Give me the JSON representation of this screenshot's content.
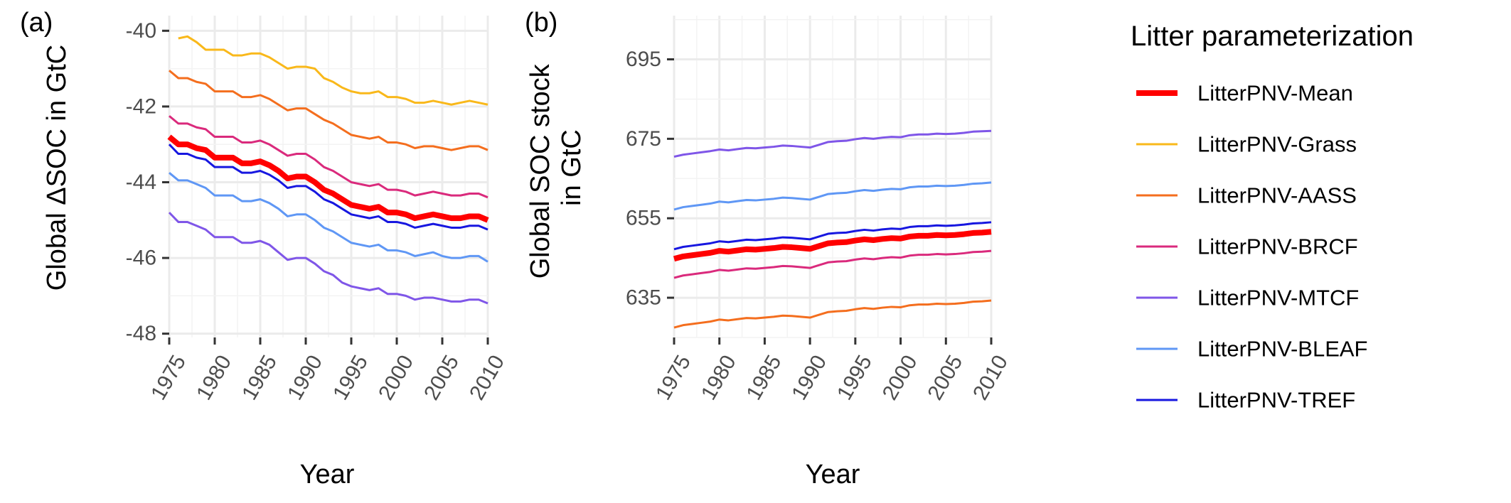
{
  "chart_data": [
    {
      "panel": "(a)",
      "type": "line",
      "xlabel": "Year",
      "ylabel": "Global ΔSOC in GtC",
      "xlim": [
        1975,
        2010
      ],
      "ylim": [
        -48.1,
        -39.6
      ],
      "xticks": [
        1975,
        1980,
        1985,
        1990,
        1995,
        2000,
        2005,
        2010
      ],
      "yticks": [
        -48,
        -46,
        -44,
        -42,
        -40
      ],
      "grid": true,
      "x": [
        1975,
        1976,
        1977,
        1978,
        1979,
        1980,
        1981,
        1982,
        1983,
        1984,
        1985,
        1986,
        1987,
        1988,
        1989,
        1990,
        1991,
        1992,
        1993,
        1994,
        1995,
        1996,
        1997,
        1998,
        1999,
        2000,
        2001,
        2002,
        2003,
        2004,
        2005,
        2006,
        2007,
        2008,
        2009,
        2010
      ],
      "series": [
        {
          "name": "LitterPNV-Grass",
          "values": [
            null,
            -40.2,
            -40.15,
            -40.3,
            -40.5,
            -40.5,
            -40.5,
            -40.65,
            -40.65,
            -40.6,
            -40.6,
            -40.7,
            -40.85,
            -41.0,
            -40.95,
            -40.95,
            -41.0,
            -41.25,
            -41.35,
            -41.5,
            -41.6,
            -41.65,
            -41.65,
            -41.6,
            -41.75,
            -41.75,
            -41.8,
            -41.9,
            -41.9,
            -41.85,
            -41.9,
            -41.95,
            -41.9,
            -41.85,
            -41.9,
            -41.95
          ],
          "color": "#F9B81A",
          "width": 3
        },
        {
          "name": "LitterPNV-AASS",
          "values": [
            -41.05,
            -41.25,
            -41.25,
            -41.35,
            -41.4,
            -41.6,
            -41.6,
            -41.6,
            -41.75,
            -41.75,
            -41.7,
            -41.8,
            -41.95,
            -42.1,
            -42.05,
            -42.05,
            -42.2,
            -42.35,
            -42.45,
            -42.6,
            -42.75,
            -42.8,
            -42.85,
            -42.8,
            -42.95,
            -42.95,
            -43.0,
            -43.1,
            -43.05,
            -43.05,
            -43.1,
            -43.15,
            -43.1,
            -43.05,
            -43.05,
            -43.15
          ],
          "color": "#F46E1E",
          "width": 3
        },
        {
          "name": "LitterPNV-BRCF",
          "values": [
            -42.25,
            -42.45,
            -42.45,
            -42.55,
            -42.6,
            -42.8,
            -42.8,
            -42.8,
            -42.95,
            -42.95,
            -42.9,
            -43.0,
            -43.15,
            -43.3,
            -43.25,
            -43.25,
            -43.4,
            -43.6,
            -43.7,
            -43.85,
            -44.0,
            -44.05,
            -44.1,
            -44.05,
            -44.2,
            -44.2,
            -44.25,
            -44.35,
            -44.3,
            -44.25,
            -44.3,
            -44.35,
            -44.35,
            -44.3,
            -44.3,
            -44.4
          ],
          "color": "#DA2A7C",
          "width": 3
        },
        {
          "name": "LitterPNV-Mean",
          "values": [
            -42.8,
            -43.0,
            -43.0,
            -43.1,
            -43.15,
            -43.35,
            -43.35,
            -43.35,
            -43.5,
            -43.5,
            -43.45,
            -43.55,
            -43.7,
            -43.9,
            -43.85,
            -43.85,
            -44.0,
            -44.2,
            -44.3,
            -44.45,
            -44.6,
            -44.65,
            -44.7,
            -44.65,
            -44.8,
            -44.8,
            -44.85,
            -44.95,
            -44.9,
            -44.85,
            -44.9,
            -44.95,
            -44.95,
            -44.9,
            -44.9,
            -45.0
          ],
          "color": "#FF0000",
          "width": 8
        },
        {
          "name": "LitterPNV-TREF",
          "values": [
            -43.0,
            -43.25,
            -43.25,
            -43.35,
            -43.4,
            -43.6,
            -43.6,
            -43.6,
            -43.75,
            -43.75,
            -43.7,
            -43.8,
            -43.95,
            -44.15,
            -44.1,
            -44.1,
            -44.25,
            -44.45,
            -44.55,
            -44.7,
            -44.85,
            -44.9,
            -44.95,
            -44.9,
            -45.05,
            -45.05,
            -45.1,
            -45.2,
            -45.15,
            -45.1,
            -45.15,
            -45.2,
            -45.2,
            -45.15,
            -45.15,
            -45.25
          ],
          "color": "#1717E0",
          "width": 3
        },
        {
          "name": "LitterPNV-BLEAF",
          "values": [
            -43.75,
            -43.95,
            -43.95,
            -44.05,
            -44.15,
            -44.35,
            -44.35,
            -44.35,
            -44.5,
            -44.5,
            -44.45,
            -44.55,
            -44.7,
            -44.9,
            -44.85,
            -44.85,
            -45.0,
            -45.2,
            -45.3,
            -45.45,
            -45.6,
            -45.65,
            -45.7,
            -45.65,
            -45.8,
            -45.8,
            -45.85,
            -45.95,
            -45.9,
            -45.85,
            -45.95,
            -46.0,
            -46.0,
            -45.95,
            -45.95,
            -46.1
          ],
          "color": "#5F97F5",
          "width": 3
        },
        {
          "name": "LitterPNV-MTCF",
          "values": [
            -44.8,
            -45.05,
            -45.05,
            -45.15,
            -45.25,
            -45.45,
            -45.45,
            -45.45,
            -45.6,
            -45.6,
            -45.55,
            -45.65,
            -45.85,
            -46.05,
            -46.0,
            -46.0,
            -46.15,
            -46.35,
            -46.45,
            -46.65,
            -46.75,
            -46.8,
            -46.85,
            -46.8,
            -46.95,
            -46.95,
            -47.0,
            -47.1,
            -47.05,
            -47.05,
            -47.1,
            -47.15,
            -47.15,
            -47.1,
            -47.1,
            -47.2
          ],
          "color": "#7F56E8",
          "width": 3
        }
      ]
    },
    {
      "panel": "(b)",
      "type": "line",
      "xlabel": "Year",
      "ylabel": [
        "Global SOC stock",
        "in GtC"
      ],
      "xlim": [
        1975,
        2010
      ],
      "ylim": [
        625,
        706
      ],
      "xticks": [
        1975,
        1980,
        1985,
        1990,
        1995,
        2000,
        2005,
        2010
      ],
      "yticks": [
        635,
        655,
        675,
        695
      ],
      "grid": true,
      "x": [
        1975,
        1976,
        1977,
        1978,
        1979,
        1980,
        1981,
        1982,
        1983,
        1984,
        1985,
        1986,
        1987,
        1988,
        1989,
        1990,
        1991,
        1992,
        1993,
        1994,
        1995,
        1996,
        1997,
        1998,
        1999,
        2000,
        2001,
        2002,
        2003,
        2004,
        2005,
        2006,
        2007,
        2008,
        2009,
        2010
      ],
      "series": [
        {
          "name": "LitterPNV-MTCF",
          "values": [
            670.5,
            671.0,
            671.3,
            671.6,
            671.9,
            672.3,
            672.1,
            672.4,
            672.7,
            672.6,
            672.8,
            673.0,
            673.3,
            673.2,
            673.0,
            672.8,
            673.5,
            674.2,
            674.4,
            674.5,
            674.9,
            675.2,
            675.0,
            675.3,
            675.5,
            675.4,
            675.9,
            676.1,
            676.1,
            676.3,
            676.2,
            676.3,
            676.5,
            676.8,
            676.9,
            677.0
          ],
          "color": "#7F56E8",
          "width": 3
        },
        {
          "name": "LitterPNV-BLEAF",
          "values": [
            657.2,
            657.8,
            658.1,
            658.4,
            658.7,
            659.2,
            659.0,
            659.3,
            659.6,
            659.5,
            659.7,
            659.9,
            660.2,
            660.1,
            659.9,
            659.7,
            660.4,
            661.1,
            661.3,
            661.4,
            661.8,
            662.1,
            661.9,
            662.2,
            662.4,
            662.3,
            662.8,
            663.0,
            663.0,
            663.2,
            663.1,
            663.2,
            663.4,
            663.7,
            663.8,
            664.0
          ],
          "color": "#5F97F5",
          "width": 3
        },
        {
          "name": "LitterPNV-TREF",
          "values": [
            647.2,
            647.8,
            648.1,
            648.4,
            648.7,
            649.2,
            649.0,
            649.3,
            649.6,
            649.5,
            649.7,
            649.9,
            650.2,
            650.1,
            649.9,
            649.7,
            650.4,
            651.1,
            651.3,
            651.4,
            651.8,
            652.1,
            651.9,
            652.2,
            652.4,
            652.3,
            652.8,
            653.0,
            653.0,
            653.2,
            653.1,
            653.2,
            653.4,
            653.7,
            653.8,
            654.0
          ],
          "color": "#1717E0",
          "width": 3
        },
        {
          "name": "LitterPNV-Mean",
          "values": [
            644.8,
            645.4,
            645.7,
            646.0,
            646.3,
            646.8,
            646.6,
            646.9,
            647.2,
            647.1,
            647.3,
            647.5,
            647.8,
            647.7,
            647.5,
            647.3,
            648.0,
            648.7,
            648.9,
            649.0,
            649.4,
            649.7,
            649.5,
            649.8,
            650.0,
            649.9,
            650.4,
            650.6,
            650.6,
            650.8,
            650.7,
            650.8,
            651.0,
            651.3,
            651.4,
            651.6
          ],
          "color": "#FF0000",
          "width": 8
        },
        {
          "name": "LitterPNV-BRCF",
          "values": [
            640.0,
            640.6,
            640.9,
            641.2,
            641.5,
            642.0,
            641.8,
            642.1,
            642.4,
            642.3,
            642.5,
            642.7,
            643.0,
            642.9,
            642.7,
            642.5,
            643.2,
            643.9,
            644.1,
            644.2,
            644.6,
            644.9,
            644.7,
            645.0,
            645.2,
            645.1,
            645.6,
            645.8,
            645.8,
            646.0,
            645.9,
            646.0,
            646.2,
            646.5,
            646.6,
            646.8
          ],
          "color": "#DA2A7C",
          "width": 3
        },
        {
          "name": "LitterPNV-AASS",
          "values": [
            627.5,
            628.1,
            628.4,
            628.7,
            629.0,
            629.5,
            629.3,
            629.6,
            629.9,
            629.8,
            630.0,
            630.2,
            630.5,
            630.4,
            630.2,
            630.0,
            630.7,
            631.4,
            631.6,
            631.7,
            632.1,
            632.4,
            632.2,
            632.5,
            632.7,
            632.6,
            633.1,
            633.3,
            633.3,
            633.5,
            633.4,
            633.5,
            633.7,
            634.0,
            634.1,
            634.3
          ],
          "color": "#F46E1E",
          "width": 3
        }
      ]
    }
  ],
  "legend": {
    "title": "Litter parameterization",
    "placement": "right",
    "items": [
      {
        "label": "LitterPNV-Mean",
        "color": "#FF0000",
        "width": 8
      },
      {
        "label": "LitterPNV-Grass",
        "color": "#F9B81A",
        "width": 3
      },
      {
        "label": "LitterPNV-AASS",
        "color": "#F46E1E",
        "width": 3
      },
      {
        "label": "LitterPNV-BRCF",
        "color": "#DA2A7C",
        "width": 3
      },
      {
        "label": "LitterPNV-MTCF",
        "color": "#7F56E8",
        "width": 3
      },
      {
        "label": "LitterPNV-BLEAF",
        "color": "#5F97F5",
        "width": 3
      },
      {
        "label": "LitterPNV-TREF",
        "color": "#1717E0",
        "width": 3
      }
    ]
  }
}
